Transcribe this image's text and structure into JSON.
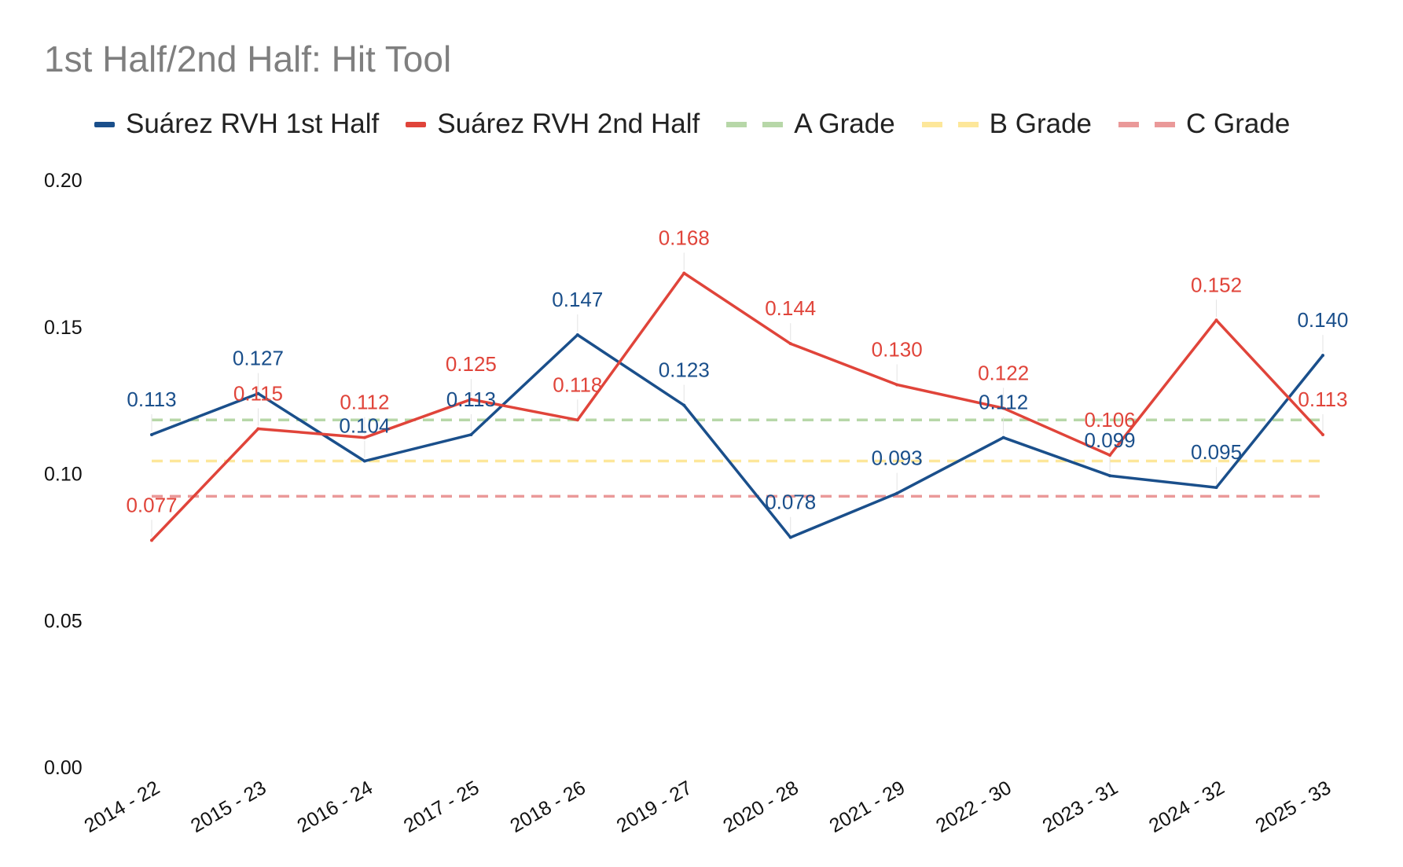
{
  "chart_data": {
    "type": "line",
    "title": "1st Half/2nd Half: Hit Tool",
    "xlabel": "",
    "ylabel": "",
    "ylim": [
      0,
      0.2
    ],
    "yticks": [
      "0.00",
      "0.05",
      "0.10",
      "0.15",
      "0.20"
    ],
    "legend_position": "top-left",
    "grid": false,
    "categories": [
      "2014 - 22",
      "2015 - 23",
      "2016 - 24",
      "2017 - 25",
      "2018 - 26",
      "2019 - 27",
      "2020 - 28",
      "2021 - 29",
      "2022 - 30",
      "2023 - 31",
      "2024 - 32",
      "2025 - 33"
    ],
    "series": [
      {
        "name": "Suárez RVH 1st Half",
        "color": "#1a4f8b",
        "style": "solid",
        "values": [
          0.113,
          0.127,
          0.104,
          0.113,
          0.147,
          0.123,
          0.078,
          0.093,
          0.112,
          0.099,
          0.095,
          0.14
        ],
        "labels": [
          "0.113",
          "0.127",
          "0.104",
          "0.113",
          "0.147",
          "0.123",
          "0.078",
          "0.093",
          "0.112",
          "0.099",
          "0.095",
          "0.140"
        ]
      },
      {
        "name": "Suárez RVH 2nd Half",
        "color": "#e0443a",
        "style": "solid",
        "values": [
          0.077,
          0.115,
          0.112,
          0.125,
          0.118,
          0.168,
          0.144,
          0.13,
          0.122,
          0.106,
          0.152,
          0.113
        ],
        "labels": [
          "0.077",
          "0.115",
          "0.112",
          "0.125",
          "0.118",
          "0.168",
          "0.144",
          "0.130",
          "0.122",
          "0.106",
          "0.152",
          "0.113"
        ]
      }
    ],
    "reference_lines": [
      {
        "name": "A Grade",
        "value": 0.118,
        "color": "#b7d7a8",
        "style": "dashed"
      },
      {
        "name": "B Grade",
        "value": 0.104,
        "color": "#fde79a",
        "style": "dashed"
      },
      {
        "name": "C Grade",
        "value": 0.092,
        "color": "#ea9999",
        "style": "dashed"
      }
    ]
  }
}
